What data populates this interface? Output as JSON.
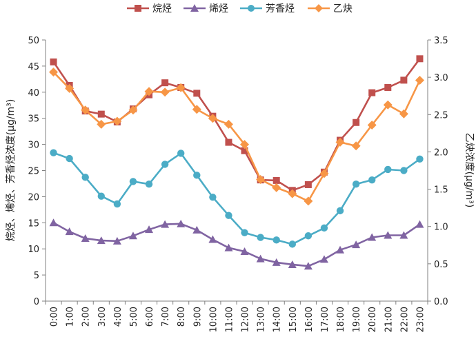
{
  "chart_data": {
    "type": "line",
    "title": "",
    "categories": [
      "0:00",
      "1:00",
      "2:00",
      "3:00",
      "4:00",
      "5:00",
      "6:00",
      "7:00",
      "8:00",
      "9:00",
      "10:00",
      "11:00",
      "12:00",
      "13:00",
      "14:00",
      "15:00",
      "16:00",
      "17:00",
      "18:00",
      "19:00",
      "20:00",
      "21:00",
      "22:00",
      "23:00"
    ],
    "ylabel_left": "烷烃、烯烃、芳香烃浓度(μg/m³)",
    "ylabel_right": "乙炔浓度(μg/m³)",
    "ylim_left": [
      0,
      50
    ],
    "ylim_right": [
      0,
      3.5
    ],
    "yticks_left": [
      "0",
      "5",
      "10",
      "15",
      "20",
      "25",
      "30",
      "35",
      "40",
      "45",
      "50"
    ],
    "yticks_right": [
      "0.0",
      "0.5",
      "1.0",
      "1.5",
      "2.0",
      "2.5",
      "3.0",
      "3.5"
    ],
    "grid": false,
    "legend_position": "top",
    "series": [
      {
        "name": "烷烃",
        "axis": "left",
        "color": "#c0504d",
        "marker": "square",
        "values": [
          45.8,
          41.3,
          36.4,
          35.8,
          34.3,
          36.8,
          39.5,
          41.8,
          40.9,
          39.8,
          35.4,
          30.4,
          28.8,
          23.2,
          23.1,
          21.2,
          22.3,
          24.7,
          30.8,
          34.2,
          39.9,
          40.9,
          42.3,
          46.4
        ]
      },
      {
        "name": "烯烃",
        "axis": "left",
        "color": "#8064a2",
        "marker": "triangle",
        "values": [
          15.0,
          13.3,
          12.0,
          11.6,
          11.5,
          12.5,
          13.7,
          14.7,
          14.8,
          13.6,
          11.8,
          10.2,
          9.5,
          8.1,
          7.4,
          7.0,
          6.7,
          8.0,
          9.8,
          10.8,
          12.2,
          12.6,
          12.6,
          14.7
        ]
      },
      {
        "name": "芳香烃",
        "axis": "left",
        "color": "#4bacc6",
        "marker": "circle",
        "values": [
          28.4,
          27.3,
          23.7,
          20.1,
          18.6,
          22.9,
          22.4,
          26.2,
          28.3,
          24.1,
          19.9,
          16.4,
          13.1,
          12.2,
          11.7,
          10.9,
          12.5,
          14.0,
          17.3,
          22.4,
          23.2,
          25.2,
          25.0,
          27.2
        ]
      },
      {
        "name": "乙炔",
        "axis": "right",
        "color": "#f79646",
        "marker": "diamond",
        "values": [
          3.07,
          2.85,
          2.56,
          2.37,
          2.41,
          2.56,
          2.81,
          2.8,
          2.86,
          2.57,
          2.45,
          2.37,
          2.1,
          1.63,
          1.52,
          1.44,
          1.34,
          1.71,
          2.13,
          2.08,
          2.36,
          2.63,
          2.51,
          2.96
        ]
      }
    ]
  }
}
